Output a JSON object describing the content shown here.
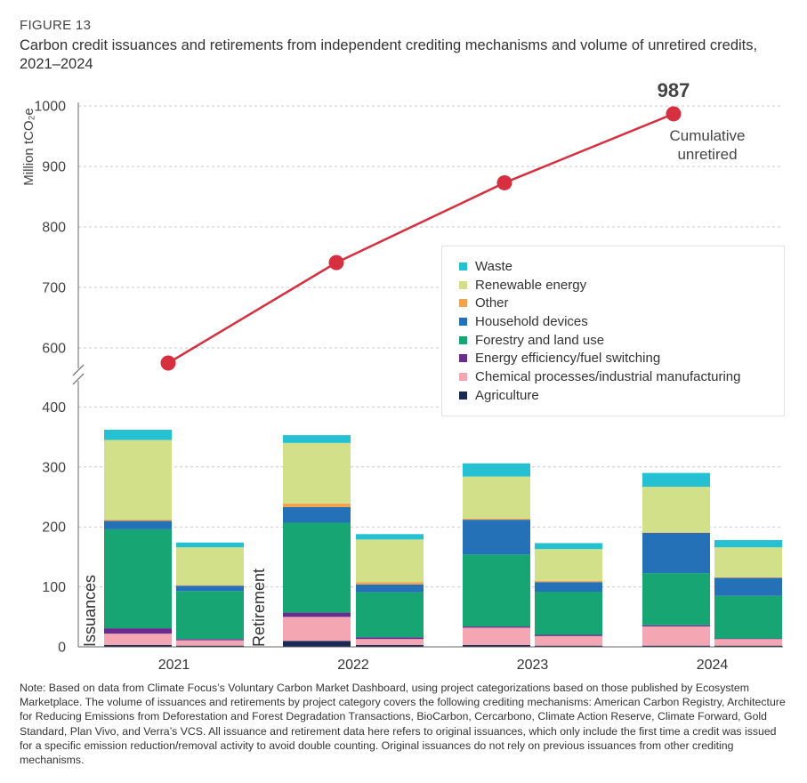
{
  "figure_label": "FIGURE 13",
  "title": "Carbon credit issuances and retirements from independent crediting mechanisms and volume of unretired credits, 2021–2024",
  "note": "Note: Based on data from Climate Focus’s Voluntary Carbon Market Dashboard, using project categorizations based on those published by Ecosystem Marketplace. The volume of issuances and retirements by project category covers the following crediting mechanisms: American Carbon Registry, Architecture for Reducing Emissions from Deforestation and Forest Degradation Transactions, BioCarbon, Cercarbono, Climate Action Reserve, Climate Forward, Gold Standard, Plan Vivo, and Verra’s VCS. All issuance and retirement data here refers to original issuances, which only include the first time a credit was issued for a specific emission reduction/removal activity to avoid double counting. Original issuances do not rely on previous issuances from other crediting mechanisms.",
  "chart_data": {
    "type": "bar",
    "subtype": "stacked-bar-with-line-broken-axis",
    "ylabel": "Million tCO₂e",
    "yticks_lower": [
      0,
      100,
      200,
      300,
      400
    ],
    "yticks_upper": [
      600,
      700,
      800,
      900,
      1000
    ],
    "axis_break": [
      400,
      550
    ],
    "categories": [
      "2021",
      "2022",
      "2023",
      "2024"
    ],
    "bar_labels": {
      "issuances": "Issuances",
      "retirement": "Retirement"
    },
    "legend": [
      "Waste",
      "Renewable energy",
      "Other",
      "Household devices",
      "Forestry and land use",
      "Energy efficiency/fuel switching",
      "Chemical processes/industrial manufacturing",
      "Agriculture"
    ],
    "colors": {
      "Agriculture": "#1b2a55",
      "Chemical processes/industrial manufacturing": "#f4a6b2",
      "Energy efficiency/fuel switching": "#6a2c8f",
      "Forestry and land use": "#17a673",
      "Household devices": "#2471b8",
      "Other": "#f3a24e",
      "Renewable energy": "#d3e08a",
      "Waste": "#26c0d3"
    },
    "stack_order": [
      "Agriculture",
      "Chemical processes/industrial manufacturing",
      "Energy efficiency/fuel switching",
      "Forestry and land use",
      "Household devices",
      "Other",
      "Renewable energy",
      "Waste"
    ],
    "issuances": [
      {
        "Agriculture": 3,
        "Chemical processes/industrial manufacturing": 19,
        "Energy efficiency/fuel switching": 9,
        "Forestry and land use": 165,
        "Household devices": 14,
        "Other": 2,
        "Renewable energy": 133,
        "Waste": 17
      },
      {
        "Agriculture": 10,
        "Chemical processes/industrial manufacturing": 40,
        "Energy efficiency/fuel switching": 7,
        "Forestry and land use": 150,
        "Household devices": 26,
        "Other": 6,
        "Renewable energy": 101,
        "Waste": 13
      },
      {
        "Agriculture": 3,
        "Chemical processes/industrial manufacturing": 29,
        "Energy efficiency/fuel switching": 2,
        "Forestry and land use": 120,
        "Household devices": 58,
        "Other": 2,
        "Renewable energy": 70,
        "Waste": 22
      },
      {
        "Agriculture": 2,
        "Chemical processes/industrial manufacturing": 32,
        "Energy efficiency/fuel switching": 2,
        "Forestry and land use": 87,
        "Household devices": 67,
        "Other": 1,
        "Renewable energy": 76,
        "Waste": 23
      }
    ],
    "retirements": [
      {
        "Agriculture": 2,
        "Chemical processes/industrial manufacturing": 9,
        "Energy efficiency/fuel switching": 2,
        "Forestry and land use": 80,
        "Household devices": 9,
        "Other": 1,
        "Renewable energy": 63,
        "Waste": 8
      },
      {
        "Agriculture": 3,
        "Chemical processes/industrial manufacturing": 10,
        "Energy efficiency/fuel switching": 3,
        "Forestry and land use": 75,
        "Household devices": 13,
        "Other": 4,
        "Renewable energy": 71,
        "Waste": 9
      },
      {
        "Agriculture": 2,
        "Chemical processes/industrial manufacturing": 16,
        "Energy efficiency/fuel switching": 2,
        "Forestry and land use": 72,
        "Household devices": 16,
        "Other": 2,
        "Renewable energy": 53,
        "Waste": 10
      },
      {
        "Agriculture": 2,
        "Chemical processes/industrial manufacturing": 11,
        "Energy efficiency/fuel switching": 1,
        "Forestry and land use": 71,
        "Household devices": 30,
        "Other": 1,
        "Renewable energy": 50,
        "Waste": 12
      }
    ],
    "cumulative_unretired": {
      "name": "Cumulative unretired",
      "values": [
        575,
        741,
        873,
        987
      ],
      "label_value": "987",
      "label_line1": "Cumulative",
      "label_line2": "unretired",
      "color": "#d62f3f"
    }
  }
}
